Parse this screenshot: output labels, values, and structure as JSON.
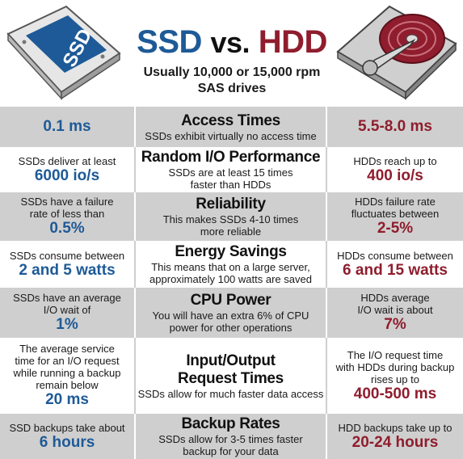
{
  "header": {
    "title_ssd": "SSD",
    "title_vs": "vs.",
    "title_hdd": "HDD",
    "subtitle_line1": "Usually 10,000 or 15,000 rpm",
    "subtitle_line2": "SAS drives",
    "ssd_label": "SSD"
  },
  "colors": {
    "ssd_blue": "#1e5a97",
    "hdd_red": "#8f1d2d",
    "row_gray": "#cfcfcf"
  },
  "rows": [
    {
      "heading": "Access Times",
      "desc": [
        "SSDs exhibit virtually no access time"
      ],
      "ssd_text": [],
      "ssd_value": "0.1 ms",
      "hdd_text": [],
      "hdd_value": "5.5-8.0 ms"
    },
    {
      "heading": "Random I/O Performance",
      "desc": [
        "SSDs are at least 15 times",
        "faster than HDDs"
      ],
      "ssd_text": [
        "SSDs deliver at least"
      ],
      "ssd_value": "6000 io/s",
      "hdd_text": [
        "HDDs reach up to"
      ],
      "hdd_value": "400 io/s"
    },
    {
      "heading": "Reliability",
      "desc": [
        "This makes SSDs 4-10 times",
        "more reliable"
      ],
      "ssd_text": [
        "SSDs have a failure",
        "rate of less than"
      ],
      "ssd_value": "0.5%",
      "hdd_text": [
        "HDDs failure rate",
        "fluctuates between"
      ],
      "hdd_value": "2-5%"
    },
    {
      "heading": "Energy Savings",
      "desc": [
        "This means that on a large server,",
        "approximately 100 watts are saved"
      ],
      "ssd_text": [
        "SSDs consume between"
      ],
      "ssd_value": "2 and 5 watts",
      "hdd_text": [
        "HDDs consume between"
      ],
      "hdd_value": "6 and 15 watts"
    },
    {
      "heading": "CPU Power",
      "desc": [
        "You will have an extra 6% of CPU",
        "power for other operations"
      ],
      "ssd_text": [
        "SSDs have an average",
        "I/O wait of"
      ],
      "ssd_value": "1%",
      "hdd_text": [
        "HDDs average",
        "I/O wait is about"
      ],
      "hdd_value": "7%"
    },
    {
      "heading": "Input/Output Request Times",
      "heading_lines": [
        "Input/Output",
        "Request Times"
      ],
      "desc": [
        "SSDs allow for much faster data access"
      ],
      "ssd_text": [
        "The average service",
        "time for an I/O request",
        "while running a backup",
        "remain below"
      ],
      "ssd_value": "20 ms",
      "hdd_text": [
        "The I/O request time",
        "with HDDs during backup",
        "rises up to"
      ],
      "hdd_value": "400-500 ms"
    },
    {
      "heading": "Backup Rates",
      "desc": [
        "SSDs allow for 3-5 times faster",
        "backup for your data"
      ],
      "ssd_text": [
        "SSD backups take about"
      ],
      "ssd_value": "6 hours",
      "hdd_text": [
        "HDD backups take up to"
      ],
      "hdd_value": "20-24 hours"
    }
  ]
}
